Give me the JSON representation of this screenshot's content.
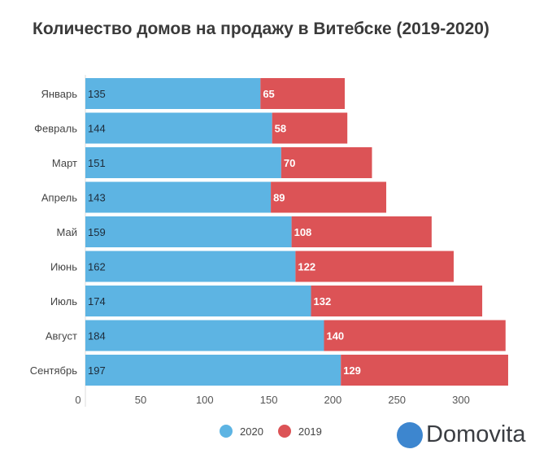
{
  "chart_data": {
    "type": "bar",
    "orientation": "horizontal",
    "stacked": true,
    "title": "Количество домов на продажу в Витебске (2019-2020)",
    "categories": [
      "Январь",
      "Февраль",
      "Март",
      "Апрель",
      "Май",
      "Июнь",
      "Июль",
      "Август",
      "Сентябрь"
    ],
    "series": [
      {
        "name": "2020",
        "color": "#5db4e3",
        "values": [
          135,
          144,
          151,
          143,
          159,
          162,
          174,
          184,
          197
        ]
      },
      {
        "name": "2019",
        "color": "#dc5356",
        "values": [
          65,
          58,
          70,
          89,
          108,
          122,
          132,
          140,
          129
        ]
      }
    ],
    "x_ticks": [
      0,
      50,
      100,
      150,
      200,
      250,
      300
    ],
    "grid": false,
    "legend_position": "bottom"
  },
  "logo": {
    "text": "Domovita",
    "color": "#3d86cf"
  }
}
